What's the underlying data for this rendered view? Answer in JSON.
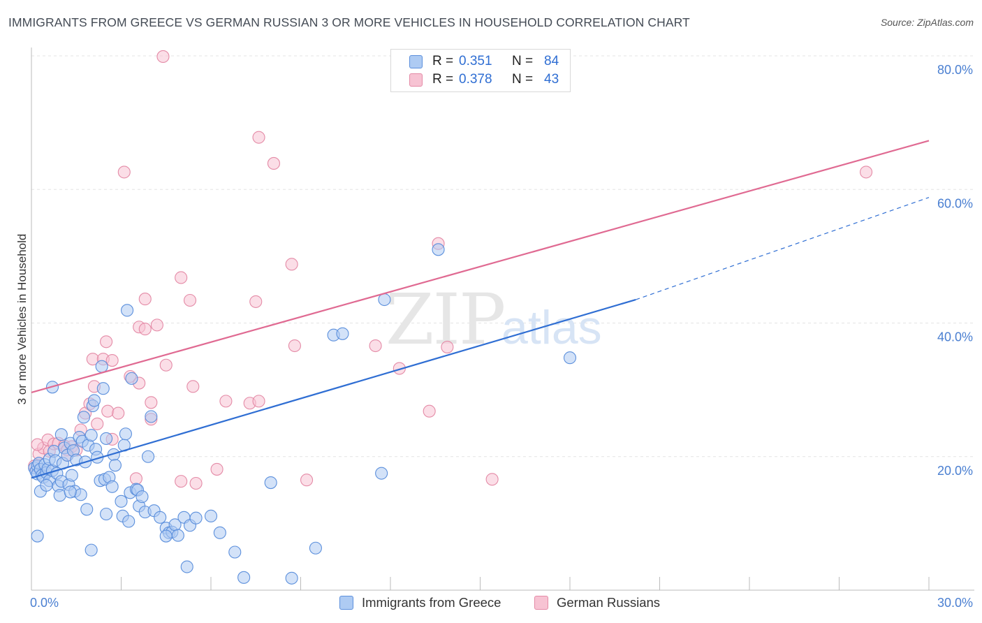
{
  "chart_data": {
    "type": "scatter",
    "title": "IMMIGRANTS FROM GREECE VS GERMAN RUSSIAN 3 OR MORE VEHICLES IN HOUSEHOLD CORRELATION CHART",
    "source": "Source: ZipAtlas.com",
    "watermark": {
      "zip": "ZIP",
      "atlas": "atlas"
    },
    "xlabel": "",
    "ylabel": "3 or more Vehicles in Household",
    "xlim": [
      0,
      30
    ],
    "ylim": [
      0,
      80
    ],
    "x_tick_labels": [
      {
        "value": 0,
        "label": "0.0%"
      },
      {
        "value": 30,
        "label": "30.0%"
      }
    ],
    "y_tick_labels": [
      {
        "value": 20,
        "label": "20.0%"
      },
      {
        "value": 40,
        "label": "40.0%"
      },
      {
        "value": 60,
        "label": "60.0%"
      },
      {
        "value": 80,
        "label": "80.0%"
      }
    ],
    "stats": [
      {
        "series": "Immigrants from Greece",
        "r_label": "R =",
        "r": "0.351",
        "n_label": "N =",
        "n": "84"
      },
      {
        "series": "German Russians",
        "r_label": "R =",
        "r": "0.378",
        "n_label": "N =",
        "n": "43"
      }
    ],
    "series": [
      {
        "name": "Immigrants from Greece",
        "color": "#5b8fdc",
        "fill": "#aecbf3",
        "line_color": "#2f6ed3",
        "trend": {
          "x0": 0,
          "y0": 16.8,
          "x1": 20.2,
          "y1": 43.5,
          "dash_to_x": 30,
          "dash_to_y": 58.8
        },
        "points": [
          [
            0.1,
            18.3
          ],
          [
            0.15,
            17.8
          ],
          [
            0.2,
            18.6
          ],
          [
            0.2,
            17.4
          ],
          [
            0.25,
            19.0
          ],
          [
            0.3,
            18.1
          ],
          [
            0.35,
            17.2
          ],
          [
            0.4,
            16.9
          ],
          [
            0.45,
            18.8
          ],
          [
            0.5,
            17.6
          ],
          [
            0.55,
            18.2
          ],
          [
            0.6,
            19.6
          ],
          [
            0.6,
            16.4
          ],
          [
            0.7,
            17.9
          ],
          [
            0.75,
            20.8
          ],
          [
            0.8,
            19.4
          ],
          [
            0.85,
            17.5
          ],
          [
            0.9,
            15.6
          ],
          [
            0.95,
            14.2
          ],
          [
            1.0,
            16.3
          ],
          [
            1.0,
            23.3
          ],
          [
            1.05,
            19.0
          ],
          [
            1.1,
            21.3
          ],
          [
            1.2,
            20.2
          ],
          [
            1.25,
            15.8
          ],
          [
            1.3,
            22.0
          ],
          [
            1.35,
            17.2
          ],
          [
            1.4,
            20.9
          ],
          [
            1.45,
            14.8
          ],
          [
            1.5,
            19.5
          ],
          [
            1.6,
            22.9
          ],
          [
            1.65,
            14.3
          ],
          [
            1.7,
            22.3
          ],
          [
            1.75,
            25.9
          ],
          [
            1.8,
            19.2
          ],
          [
            1.85,
            12.1
          ],
          [
            1.9,
            21.7
          ],
          [
            2.0,
            23.2
          ],
          [
            2.05,
            27.6
          ],
          [
            2.1,
            28.4
          ],
          [
            2.15,
            21.1
          ],
          [
            2.2,
            19.9
          ],
          [
            2.3,
            16.4
          ],
          [
            2.35,
            33.5
          ],
          [
            2.4,
            30.2
          ],
          [
            2.45,
            16.6
          ],
          [
            2.5,
            11.4
          ],
          [
            2.6,
            16.9
          ],
          [
            2.7,
            15.5
          ],
          [
            2.75,
            20.3
          ],
          [
            2.8,
            18.7
          ],
          [
            3.0,
            13.3
          ],
          [
            3.05,
            11.1
          ],
          [
            3.1,
            21.7
          ],
          [
            3.15,
            23.4
          ],
          [
            3.2,
            41.9
          ],
          [
            3.25,
            10.3
          ],
          [
            3.3,
            14.6
          ],
          [
            3.35,
            31.7
          ],
          [
            3.5,
            15.1
          ],
          [
            3.55,
            15.0
          ],
          [
            3.6,
            12.6
          ],
          [
            3.7,
            14.0
          ],
          [
            3.8,
            11.7
          ],
          [
            3.9,
            20.0
          ],
          [
            4.0,
            26.0
          ],
          [
            4.1,
            11.9
          ],
          [
            4.3,
            10.9
          ],
          [
            4.5,
            9.3
          ],
          [
            4.6,
            8.6
          ],
          [
            4.7,
            8.7
          ],
          [
            4.8,
            9.8
          ],
          [
            4.9,
            8.2
          ],
          [
            5.1,
            10.9
          ],
          [
            5.2,
            3.5
          ],
          [
            5.3,
            9.7
          ],
          [
            5.5,
            10.8
          ],
          [
            6.0,
            11.1
          ],
          [
            6.3,
            8.6
          ],
          [
            6.8,
            5.7
          ],
          [
            7.1,
            1.9
          ],
          [
            8.0,
            16.1
          ],
          [
            8.7,
            1.8
          ],
          [
            9.5,
            6.3
          ],
          [
            10.1,
            38.2
          ],
          [
            10.4,
            38.4
          ],
          [
            11.7,
            17.5
          ],
          [
            11.8,
            43.5
          ],
          [
            13.6,
            51.0
          ],
          [
            18.0,
            34.8
          ]
        ]
      },
      {
        "name": "German Russians",
        "color": "#e48aa6",
        "fill": "#f7c3d3",
        "line_color": "#e06a92",
        "trend": {
          "x0": 0,
          "y0": 29.6,
          "x1": 30,
          "y1": 67.3
        },
        "points": [
          [
            0.1,
            18.6
          ],
          [
            0.25,
            20.4
          ],
          [
            0.4,
            21.3
          ],
          [
            0.55,
            22.5
          ],
          [
            0.6,
            20.8
          ],
          [
            0.75,
            21.9
          ],
          [
            0.9,
            22.0
          ],
          [
            1.1,
            21.6
          ],
          [
            1.2,
            21.0
          ],
          [
            1.35,
            21.5
          ],
          [
            1.5,
            21.0
          ],
          [
            1.65,
            24.0
          ],
          [
            1.8,
            26.5
          ],
          [
            1.95,
            27.9
          ],
          [
            2.05,
            34.6
          ],
          [
            2.1,
            30.5
          ],
          [
            2.2,
            24.9
          ],
          [
            2.4,
            34.6
          ],
          [
            2.5,
            37.2
          ],
          [
            2.55,
            26.8
          ],
          [
            2.7,
            22.6
          ],
          [
            2.9,
            26.5
          ],
          [
            3.1,
            62.6
          ],
          [
            3.3,
            32.0
          ],
          [
            3.5,
            16.7
          ],
          [
            3.6,
            39.4
          ],
          [
            3.8,
            43.6
          ],
          [
            4.0,
            28.1
          ],
          [
            4.2,
            39.7
          ],
          [
            4.5,
            33.7
          ],
          [
            5.0,
            46.8
          ],
          [
            5.3,
            43.4
          ],
          [
            5.4,
            30.5
          ],
          [
            5.5,
            16.0
          ],
          [
            6.2,
            18.1
          ],
          [
            6.5,
            28.3
          ],
          [
            7.3,
            28.0
          ],
          [
            7.5,
            43.2
          ],
          [
            7.6,
            28.3
          ],
          [
            8.8,
            36.6
          ],
          [
            11.5,
            36.6
          ],
          [
            13.6,
            51.9
          ],
          [
            27.9,
            62.6
          ]
        ]
      }
    ],
    "extra_points": {
      "greece": [
        [
          0.3,
          14.8
        ],
        [
          0.5,
          15.7
        ],
        [
          0.2,
          8.1
        ],
        [
          1.3,
          14.7
        ],
        [
          2.0,
          6.0
        ],
        [
          2.5,
          22.7
        ],
        [
          0.7,
          30.4
        ],
        [
          4.5,
          8.1
        ]
      ],
      "german": [
        [
          0.2,
          21.8
        ],
        [
          1.2,
          20.2
        ],
        [
          2.7,
          34.4
        ],
        [
          3.6,
          31.0
        ],
        [
          3.8,
          39.1
        ],
        [
          4.0,
          25.6
        ],
        [
          5.0,
          16.3
        ],
        [
          7.6,
          67.8
        ],
        [
          8.1,
          63.9
        ],
        [
          8.7,
          48.8
        ],
        [
          9.2,
          16.5
        ],
        [
          12.3,
          33.2
        ],
        [
          13.3,
          26.8
        ],
        [
          13.9,
          36.4
        ],
        [
          15.4,
          16.6
        ],
        [
          4.4,
          79.9
        ]
      ]
    },
    "legend": [
      {
        "label": "Immigrants from Greece"
      },
      {
        "label": "German Russians"
      }
    ]
  }
}
